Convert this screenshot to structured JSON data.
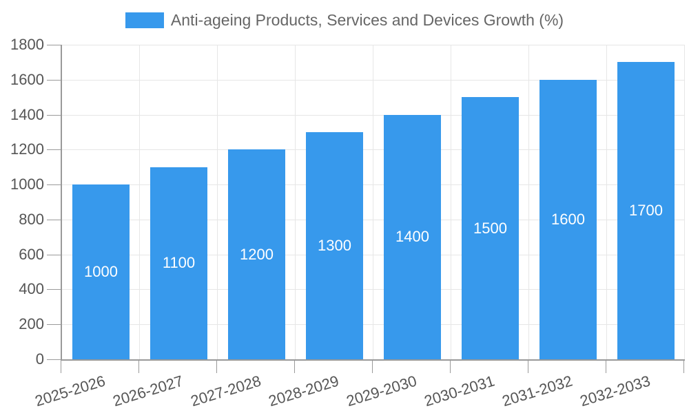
{
  "legend": {
    "label": "Anti-ageing Products, Services and Devices Growth (%)"
  },
  "chart_data": {
    "type": "bar",
    "title": "Anti-ageing Products, Services and Devices Growth (%)",
    "categories": [
      "2025-2026",
      "2026-2027",
      "2027-2028",
      "2028-2029",
      "2029-2030",
      "2030-2031",
      "2031-2032",
      "2032-2033"
    ],
    "values": [
      1000,
      1100,
      1200,
      1300,
      1400,
      1500,
      1600,
      1700
    ],
    "value_labels": [
      "1000",
      "1100",
      "1200",
      "1300",
      "1400",
      "1500",
      "1600",
      "1700"
    ],
    "xlabel": "",
    "ylabel": "",
    "ylim": [
      0,
      1800
    ],
    "yticks": [
      0,
      200,
      400,
      600,
      800,
      1000,
      1200,
      1400,
      1600,
      1800
    ],
    "ytick_labels": [
      "0",
      "200",
      "400",
      "600",
      "800",
      "1000",
      "1200",
      "1400",
      "1600",
      "1800"
    ],
    "grid": true,
    "legend_position": "top-center",
    "bar_label_placement": "inside-center"
  },
  "colors": {
    "bar": "#3799EC",
    "bar_label": "#ffffff",
    "axis": "#999999",
    "gridline": "#e6e6e6",
    "tick_label": "#555555",
    "legend_text": "#666666",
    "background": "#ffffff"
  }
}
